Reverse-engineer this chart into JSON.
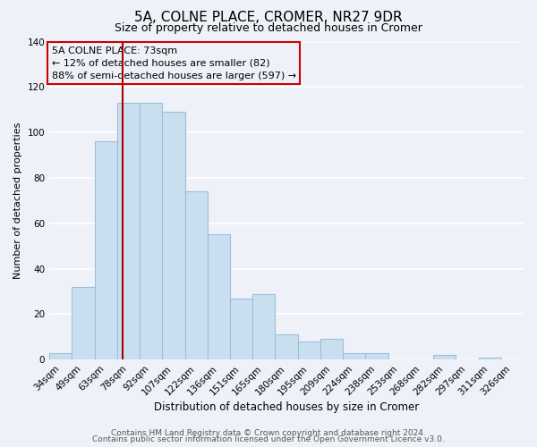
{
  "title": "5A, COLNE PLACE, CROMER, NR27 9DR",
  "subtitle": "Size of property relative to detached houses in Cromer",
  "xlabel": "Distribution of detached houses by size in Cromer",
  "ylabel": "Number of detached properties",
  "categories": [
    "34sqm",
    "49sqm",
    "63sqm",
    "78sqm",
    "92sqm",
    "107sqm",
    "122sqm",
    "136sqm",
    "151sqm",
    "165sqm",
    "180sqm",
    "195sqm",
    "209sqm",
    "224sqm",
    "238sqm",
    "253sqm",
    "268sqm",
    "282sqm",
    "297sqm",
    "311sqm",
    "326sqm"
  ],
  "values": [
    3,
    32,
    96,
    113,
    113,
    109,
    74,
    55,
    27,
    29,
    11,
    8,
    9,
    3,
    3,
    0,
    0,
    2,
    0,
    1,
    0
  ],
  "bar_color": "#c9dff0",
  "bar_edge_color": "#9bbfd8",
  "vline_x": 2.73,
  "vline_color": "#aa0000",
  "annotation_text_line1": "5A COLNE PLACE: 73sqm",
  "annotation_text_line2": "← 12% of detached houses are smaller (82)",
  "annotation_text_line3": "88% of semi-detached houses are larger (597) →",
  "annotation_box_edgecolor": "#cc0000",
  "ylim": [
    0,
    140
  ],
  "yticks": [
    0,
    20,
    40,
    60,
    80,
    100,
    120,
    140
  ],
  "footer_line1": "Contains HM Land Registry data © Crown copyright and database right 2024.",
  "footer_line2": "Contains public sector information licensed under the Open Government Licence v3.0.",
  "background_color": "#eef2f8",
  "plot_bg_color": "#eef2f8",
  "grid_color": "#ffffff",
  "title_fontsize": 11,
  "subtitle_fontsize": 9,
  "xlabel_fontsize": 8.5,
  "ylabel_fontsize": 8,
  "tick_fontsize": 7.5,
  "footer_fontsize": 6.5,
  "annotation_fontsize": 8
}
